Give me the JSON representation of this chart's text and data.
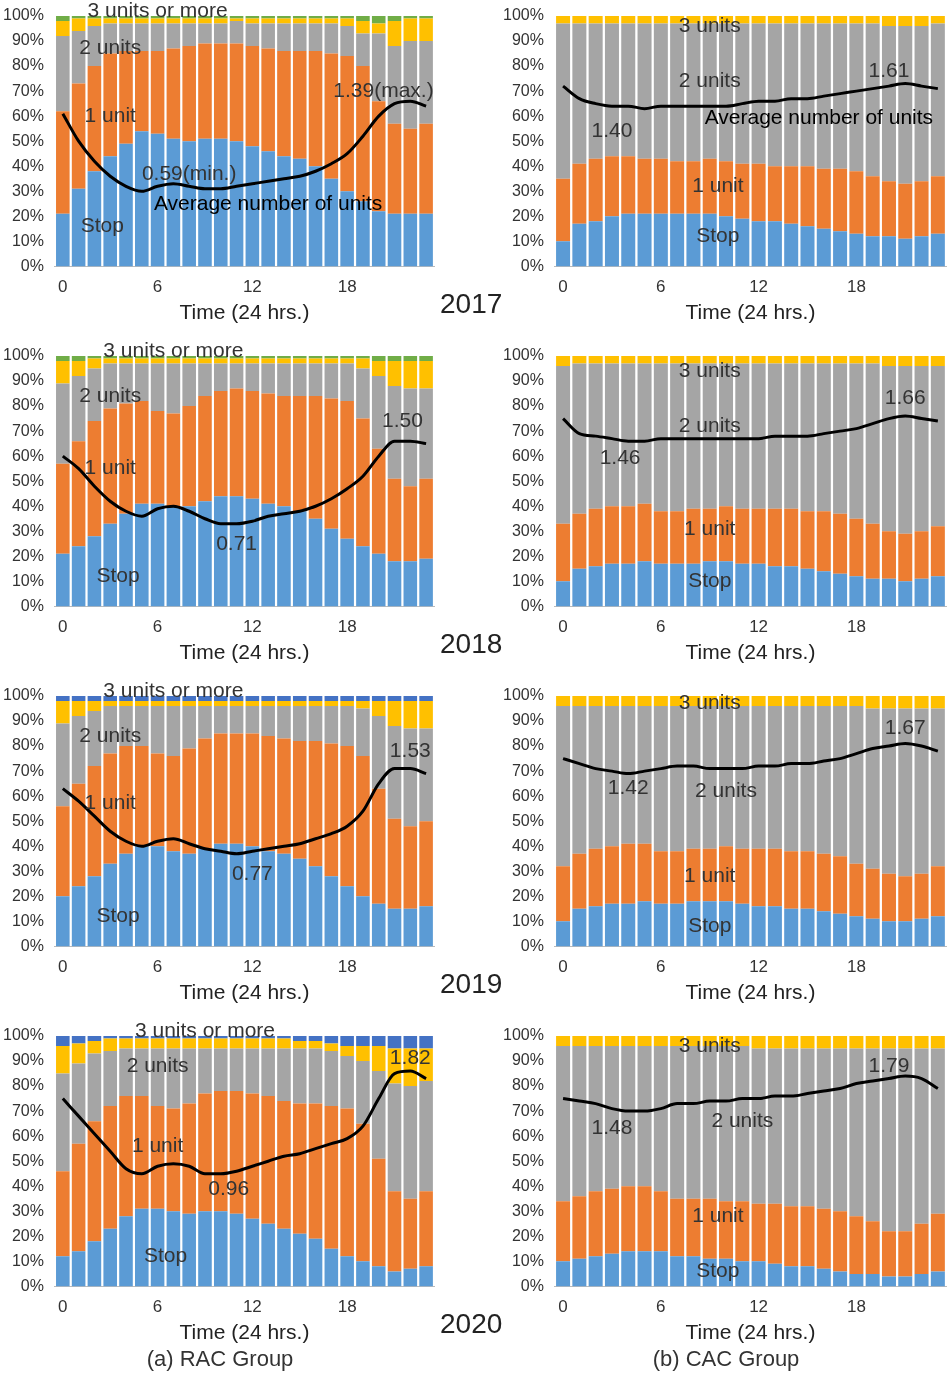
{
  "chart_data": [
    {
      "type": "bar",
      "stacked": true,
      "title": "2017",
      "xlabel": "Time (24 hrs.)",
      "grid": false,
      "legend": false,
      "marker": "none",
      "x": [
        0,
        1,
        2,
        3,
        4,
        5,
        6,
        7,
        8,
        9,
        10,
        11,
        12,
        13,
        14,
        15,
        16,
        17,
        18,
        19,
        20,
        21,
        22,
        23
      ],
      "xlim": [
        -0.5,
        23.5
      ],
      "xticks": [
        0,
        6,
        12,
        18
      ],
      "ylim": [
        0,
        100
      ],
      "yticks": [
        {
          "value": 0,
          "label": "0%"
        },
        {
          "value": 10,
          "label": "10%"
        },
        {
          "value": 20,
          "label": "20%"
        },
        {
          "value": 30,
          "label": "30%"
        },
        {
          "value": 40,
          "label": "40%"
        },
        {
          "value": 50,
          "label": "50%"
        },
        {
          "value": 60,
          "label": "60%"
        },
        {
          "value": 70,
          "label": "70%"
        },
        {
          "value": 80,
          "label": "80%"
        },
        {
          "value": 90,
          "label": "90%"
        },
        {
          "value": 100,
          "label": "100%"
        }
      ],
      "series": [
        {
          "name": "Stop",
          "color": "#5b9bd5",
          "values": [
            21,
            31,
            38,
            44,
            49,
            54,
            53,
            51,
            50,
            51,
            51,
            50,
            48,
            46,
            44,
            43,
            40,
            35,
            30,
            26,
            22,
            21,
            21,
            21
          ]
        },
        {
          "name": "1 unit",
          "color": "#ed7d31",
          "values": [
            41,
            42,
            42,
            41,
            37,
            32,
            33,
            36,
            38,
            38,
            38,
            39,
            40,
            41,
            42,
            43,
            46,
            50,
            54,
            54,
            44,
            36,
            34,
            36
          ]
        },
        {
          "name": "2 units",
          "color": "#a5a5a5",
          "values": [
            30,
            21,
            16,
            12,
            11,
            11,
            11,
            10,
            9,
            8,
            8,
            9,
            9,
            10,
            11,
            11,
            11,
            12,
            12,
            13,
            27,
            31,
            35,
            33
          ]
        },
        {
          "name": "3 units or more",
          "color": "#ffc000",
          "values": [
            6,
            5,
            3,
            2,
            2,
            2,
            2,
            2,
            2,
            2,
            2,
            1,
            2,
            2,
            2,
            2,
            2,
            2,
            3,
            5,
            4,
            10,
            9,
            9
          ]
        },
        {
          "color": "#70ad47",
          "values": [
            2,
            1,
            1,
            1,
            1,
            1,
            1,
            1,
            1,
            1,
            1,
            1,
            1,
            1,
            1,
            1,
            1,
            1,
            1,
            2,
            3,
            2,
            1,
            1
          ]
        },
        {
          "name": "Average number of units",
          "type": "line",
          "color": "#000000",
          "values": [
            61,
            50,
            42,
            36,
            32,
            30,
            32,
            33,
            32,
            31,
            31,
            32,
            33,
            34,
            35,
            36,
            38,
            41,
            45,
            52,
            60,
            65,
            66,
            64
          ]
        }
      ],
      "annotations": [
        "1.39(max.)",
        "0.59(min.)"
      ]
    },
    {
      "type": "bar",
      "stacked": true,
      "xlabel": "Time (24 hrs.)",
      "grid": false,
      "legend": false,
      "marker": "none",
      "x": [
        0,
        1,
        2,
        3,
        4,
        5,
        6,
        7,
        8,
        9,
        10,
        11,
        12,
        13,
        14,
        15,
        16,
        17,
        18,
        19,
        20,
        21,
        22,
        23
      ],
      "xlim": [
        -0.5,
        23.5
      ],
      "xticks": [
        0,
        6,
        12,
        18
      ],
      "ylim": [
        0,
        100
      ],
      "yticks": [
        {
          "value": 0,
          "label": "0%"
        },
        {
          "value": 10,
          "label": "10%"
        },
        {
          "value": 20,
          "label": "20%"
        },
        {
          "value": 30,
          "label": "30%"
        },
        {
          "value": 40,
          "label": "40%"
        },
        {
          "value": 50,
          "label": "50%"
        },
        {
          "value": 60,
          "label": "60%"
        },
        {
          "value": 70,
          "label": "70%"
        },
        {
          "value": 80,
          "label": "80%"
        },
        {
          "value": 90,
          "label": "90%"
        },
        {
          "value": 100,
          "label": "100%"
        }
      ],
      "series": [
        {
          "name": "Stop",
          "color": "#5b9bd5",
          "values": [
            10,
            17,
            18,
            20,
            21,
            21,
            21,
            21,
            21,
            21,
            20,
            19,
            18,
            18,
            17,
            16,
            15,
            14,
            13,
            12,
            12,
            11,
            12,
            13
          ]
        },
        {
          "name": "1 unit",
          "color": "#ed7d31",
          "values": [
            25,
            24,
            25,
            24,
            23,
            22,
            22,
            21,
            21,
            22,
            22,
            22,
            23,
            22,
            23,
            24,
            24,
            25,
            25,
            24,
            22,
            22,
            22,
            23
          ]
        },
        {
          "name": "2 units",
          "color": "#a5a5a5",
          "values": [
            62,
            56,
            54,
            53,
            53,
            54,
            54,
            55,
            55,
            54,
            55,
            56,
            56,
            57,
            57,
            57,
            58,
            58,
            59,
            61,
            62,
            63,
            62,
            61
          ]
        },
        {
          "name": "3 units",
          "color": "#ffc000",
          "values": [
            3,
            3,
            3,
            3,
            3,
            3,
            3,
            3,
            3,
            3,
            3,
            3,
            3,
            3,
            3,
            3,
            3,
            3,
            3,
            3,
            4,
            4,
            4,
            3
          ]
        },
        {
          "name": "Average number of units",
          "type": "line",
          "color": "#000000",
          "values": [
            72,
            67,
            65,
            64,
            64,
            63,
            64,
            64,
            64,
            64,
            64,
            65,
            66,
            66,
            67,
            67,
            68,
            69,
            70,
            71,
            72,
            73,
            72,
            71
          ]
        }
      ],
      "annotations": [
        "1.61",
        "1.40"
      ]
    },
    {
      "type": "bar",
      "stacked": true,
      "title": "2018",
      "xlabel": "Time (24 hrs.)",
      "grid": false,
      "legend": false,
      "marker": "none",
      "x": [
        0,
        1,
        2,
        3,
        4,
        5,
        6,
        7,
        8,
        9,
        10,
        11,
        12,
        13,
        14,
        15,
        16,
        17,
        18,
        19,
        20,
        21,
        22,
        23
      ],
      "xlim": [
        -0.5,
        23.5
      ],
      "xticks": [
        0,
        6,
        12,
        18
      ],
      "ylim": [
        0,
        100
      ],
      "yticks": [
        {
          "value": 0,
          "label": "0%"
        },
        {
          "value": 10,
          "label": "10%"
        },
        {
          "value": 20,
          "label": "20%"
        },
        {
          "value": 30,
          "label": "30%"
        },
        {
          "value": 40,
          "label": "40%"
        },
        {
          "value": 50,
          "label": "50%"
        },
        {
          "value": 60,
          "label": "60%"
        },
        {
          "value": 70,
          "label": "70%"
        },
        {
          "value": 80,
          "label": "80%"
        },
        {
          "value": 90,
          "label": "90%"
        },
        {
          "value": 100,
          "label": "100%"
        }
      ],
      "series": [
        {
          "name": "Stop",
          "color": "#5b9bd5",
          "values": [
            21,
            24,
            28,
            33,
            37,
            41,
            41,
            40,
            40,
            42,
            44,
            44,
            43,
            41,
            40,
            38,
            35,
            31,
            27,
            24,
            21,
            18,
            18,
            19
          ]
        },
        {
          "name": "1 unit",
          "color": "#ed7d31",
          "values": [
            36,
            42,
            46,
            46,
            44,
            41,
            37,
            37,
            40,
            42,
            42,
            43,
            43,
            44,
            44,
            46,
            49,
            52,
            55,
            51,
            42,
            33,
            30,
            32
          ]
        },
        {
          "name": "2 units",
          "color": "#a5a5a5",
          "values": [
            32,
            26,
            21,
            18,
            16,
            15,
            19,
            20,
            17,
            13,
            11,
            10,
            11,
            12,
            13,
            13,
            13,
            14,
            15,
            20,
            29,
            37,
            39,
            36
          ]
        },
        {
          "name": "3 units or more",
          "color": "#ffc000",
          "values": [
            9,
            6,
            4,
            2,
            2,
            2,
            2,
            2,
            2,
            2,
            2,
            2,
            2,
            2,
            2,
            2,
            2,
            2,
            2,
            4,
            6,
            10,
            11,
            11
          ]
        },
        {
          "color": "#70ad47",
          "values": [
            2,
            2,
            1,
            1,
            1,
            1,
            1,
            1,
            1,
            1,
            1,
            1,
            1,
            1,
            1,
            1,
            1,
            1,
            1,
            1,
            2,
            2,
            2,
            2
          ]
        },
        {
          "type": "line",
          "color": "#000000",
          "values": [
            60,
            55,
            48,
            42,
            38,
            36,
            39,
            40,
            38,
            35,
            33,
            33,
            34,
            36,
            37,
            38,
            40,
            43,
            47,
            52,
            60,
            66,
            66,
            65
          ]
        }
      ],
      "annotations": [
        "1.50",
        "0.71"
      ]
    },
    {
      "type": "bar",
      "stacked": true,
      "xlabel": "Time (24 hrs.)",
      "grid": false,
      "legend": false,
      "marker": "none",
      "x": [
        0,
        1,
        2,
        3,
        4,
        5,
        6,
        7,
        8,
        9,
        10,
        11,
        12,
        13,
        14,
        15,
        16,
        17,
        18,
        19,
        20,
        21,
        22,
        23
      ],
      "xlim": [
        -0.5,
        23.5
      ],
      "xticks": [
        0,
        6,
        12,
        18
      ],
      "ylim": [
        0,
        100
      ],
      "yticks": [
        {
          "value": 0,
          "label": "0%"
        },
        {
          "value": 10,
          "label": "10%"
        },
        {
          "value": 20,
          "label": "20%"
        },
        {
          "value": 30,
          "label": "30%"
        },
        {
          "value": 40,
          "label": "40%"
        },
        {
          "value": 50,
          "label": "50%"
        },
        {
          "value": 60,
          "label": "60%"
        },
        {
          "value": 70,
          "label": "70%"
        },
        {
          "value": 80,
          "label": "80%"
        },
        {
          "value": 90,
          "label": "90%"
        },
        {
          "value": 100,
          "label": "100%"
        }
      ],
      "series": [
        {
          "name": "Stop",
          "color": "#5b9bd5",
          "values": [
            10,
            15,
            16,
            17,
            17,
            18,
            17,
            17,
            17,
            18,
            18,
            17,
            17,
            16,
            16,
            15,
            14,
            13,
            12,
            11,
            11,
            10,
            11,
            12
          ]
        },
        {
          "name": "1 unit",
          "color": "#ed7d31",
          "values": [
            23,
            22,
            23,
            23,
            23,
            23,
            21,
            21,
            22,
            21,
            22,
            22,
            22,
            23,
            23,
            23,
            24,
            24,
            23,
            22,
            19,
            19,
            19,
            20
          ]
        },
        {
          "name": "2 units",
          "color": "#a5a5a5",
          "values": [
            63,
            60,
            58,
            57,
            57,
            56,
            59,
            59,
            58,
            58,
            57,
            58,
            58,
            58,
            58,
            59,
            59,
            60,
            62,
            64,
            66,
            67,
            66,
            64
          ]
        },
        {
          "name": "3 units",
          "color": "#ffc000",
          "values": [
            4,
            3,
            3,
            3,
            3,
            3,
            3,
            3,
            3,
            3,
            3,
            3,
            3,
            3,
            3,
            3,
            3,
            3,
            3,
            3,
            4,
            4,
            4,
            4
          ]
        },
        {
          "type": "line",
          "color": "#000000",
          "values": [
            75,
            69,
            68,
            67,
            66,
            66,
            67,
            67,
            67,
            67,
            67,
            67,
            67,
            68,
            68,
            68,
            69,
            70,
            71,
            73,
            75,
            76,
            75,
            74
          ]
        }
      ],
      "annotations": [
        "1.66",
        "1.46"
      ]
    },
    {
      "type": "bar",
      "stacked": true,
      "title": "2019",
      "xlabel": "Time (24 hrs.)",
      "grid": false,
      "legend": false,
      "marker": "none",
      "x": [
        0,
        1,
        2,
        3,
        4,
        5,
        6,
        7,
        8,
        9,
        10,
        11,
        12,
        13,
        14,
        15,
        16,
        17,
        18,
        19,
        20,
        21,
        22,
        23
      ],
      "xlim": [
        -0.5,
        23.5
      ],
      "xticks": [
        0,
        6,
        12,
        18
      ],
      "ylim": [
        0,
        100
      ],
      "yticks": [
        {
          "value": 0,
          "label": "0%"
        },
        {
          "value": 10,
          "label": "10%"
        },
        {
          "value": 20,
          "label": "20%"
        },
        {
          "value": 30,
          "label": "30%"
        },
        {
          "value": 40,
          "label": "40%"
        },
        {
          "value": 50,
          "label": "50%"
        },
        {
          "value": 60,
          "label": "60%"
        },
        {
          "value": 70,
          "label": "70%"
        },
        {
          "value": 80,
          "label": "80%"
        },
        {
          "value": 90,
          "label": "90%"
        },
        {
          "value": 100,
          "label": "100%"
        }
      ],
      "series": [
        {
          "name": "Stop",
          "color": "#5b9bd5",
          "values": [
            20,
            24,
            28,
            33,
            37,
            40,
            40,
            38,
            37,
            39,
            41,
            41,
            40,
            38,
            37,
            35,
            32,
            28,
            24,
            20,
            17,
            15,
            15,
            16
          ]
        },
        {
          "name": "1 unit",
          "color": "#ed7d31",
          "values": [
            36,
            41,
            44,
            44,
            43,
            40,
            37,
            38,
            42,
            44,
            44,
            44,
            45,
            46,
            46,
            47,
            50,
            53,
            56,
            56,
            46,
            36,
            33,
            34
          ]
        },
        {
          "name": "2 units",
          "color": "#a5a5a5",
          "values": [
            33,
            27,
            22,
            19,
            16,
            16,
            19,
            20,
            17,
            13,
            11,
            11,
            11,
            12,
            13,
            14,
            14,
            15,
            16,
            19,
            29,
            37,
            39,
            37
          ]
        },
        {
          "name": "3 units or more",
          "color": "#ffc000",
          "values": [
            9,
            6,
            4,
            2,
            2,
            2,
            2,
            2,
            2,
            2,
            2,
            2,
            2,
            2,
            2,
            2,
            2,
            2,
            2,
            3,
            6,
            10,
            11,
            11
          ]
        },
        {
          "color": "#4472c4",
          "values": [
            2,
            2,
            2,
            2,
            2,
            2,
            2,
            2,
            2,
            2,
            2,
            2,
            2,
            2,
            2,
            2,
            2,
            2,
            2,
            2,
            2,
            2,
            2,
            2
          ]
        },
        {
          "type": "line",
          "color": "#000000",
          "values": [
            63,
            58,
            52,
            46,
            42,
            40,
            42,
            43,
            41,
            39,
            38,
            37,
            38,
            39,
            40,
            41,
            43,
            45,
            48,
            54,
            65,
            71,
            71,
            69
          ]
        }
      ],
      "annotations": [
        "1.53",
        "0.77"
      ]
    },
    {
      "type": "bar",
      "stacked": true,
      "xlabel": "Time (24 hrs.)",
      "grid": false,
      "legend": false,
      "marker": "none",
      "x": [
        0,
        1,
        2,
        3,
        4,
        5,
        6,
        7,
        8,
        9,
        10,
        11,
        12,
        13,
        14,
        15,
        16,
        17,
        18,
        19,
        20,
        21,
        22,
        23
      ],
      "xlim": [
        -0.5,
        23.5
      ],
      "xticks": [
        0,
        6,
        12,
        18
      ],
      "ylim": [
        0,
        100
      ],
      "yticks": [
        {
          "value": 0,
          "label": "0%"
        },
        {
          "value": 10,
          "label": "10%"
        },
        {
          "value": 20,
          "label": "20%"
        },
        {
          "value": 30,
          "label": "30%"
        },
        {
          "value": 40,
          "label": "40%"
        },
        {
          "value": 50,
          "label": "50%"
        },
        {
          "value": 60,
          "label": "60%"
        },
        {
          "value": 70,
          "label": "70%"
        },
        {
          "value": 80,
          "label": "80%"
        },
        {
          "value": 90,
          "label": "90%"
        },
        {
          "value": 100,
          "label": "100%"
        }
      ],
      "series": [
        {
          "name": "Stop",
          "color": "#5b9bd5",
          "values": [
            10,
            15,
            16,
            17,
            17,
            18,
            17,
            17,
            18,
            18,
            18,
            17,
            16,
            16,
            15,
            15,
            14,
            13,
            12,
            11,
            10,
            10,
            11,
            12
          ]
        },
        {
          "name": "1 unit",
          "color": "#ed7d31",
          "values": [
            22,
            22,
            23,
            23,
            24,
            23,
            21,
            21,
            21,
            21,
            22,
            22,
            23,
            23,
            23,
            23,
            23,
            23,
            21,
            20,
            19,
            18,
            18,
            20
          ]
        },
        {
          "name": "2 units",
          "color": "#a5a5a5",
          "values": [
            64,
            59,
            57,
            56,
            55,
            55,
            58,
            58,
            57,
            57,
            56,
            57,
            57,
            57,
            58,
            58,
            59,
            60,
            63,
            64,
            66,
            67,
            66,
            63
          ]
        },
        {
          "name": "3 units",
          "color": "#ffc000",
          "values": [
            4,
            4,
            4,
            4,
            4,
            4,
            4,
            4,
            4,
            4,
            4,
            4,
            4,
            4,
            4,
            4,
            4,
            4,
            4,
            5,
            5,
            5,
            5,
            5
          ]
        },
        {
          "type": "line",
          "color": "#000000",
          "values": [
            75,
            73,
            71,
            70,
            69,
            70,
            71,
            72,
            72,
            71,
            71,
            71,
            72,
            72,
            73,
            73,
            74,
            75,
            77,
            79,
            80,
            81,
            80,
            78
          ]
        }
      ],
      "annotations": [
        "1.67",
        "1.42"
      ]
    },
    {
      "type": "bar",
      "stacked": true,
      "title": "2020",
      "xlabel": "Time (24 hrs.)",
      "grid": false,
      "legend": false,
      "marker": "none",
      "x": [
        0,
        1,
        2,
        3,
        4,
        5,
        6,
        7,
        8,
        9,
        10,
        11,
        12,
        13,
        14,
        15,
        16,
        17,
        18,
        19,
        20,
        21,
        22,
        23
      ],
      "xlim": [
        -0.5,
        23.5
      ],
      "xticks": [
        0,
        6,
        12,
        18
      ],
      "ylim": [
        0,
        100
      ],
      "yticks": [
        {
          "value": 0,
          "label": "0%"
        },
        {
          "value": 10,
          "label": "10%"
        },
        {
          "value": 20,
          "label": "20%"
        },
        {
          "value": 30,
          "label": "30%"
        },
        {
          "value": 40,
          "label": "40%"
        },
        {
          "value": 50,
          "label": "50%"
        },
        {
          "value": 60,
          "label": "60%"
        },
        {
          "value": 70,
          "label": "70%"
        },
        {
          "value": 80,
          "label": "80%"
        },
        {
          "value": 90,
          "label": "90%"
        },
        {
          "value": 100,
          "label": "100%"
        }
      ],
      "series": [
        {
          "name": "Stop",
          "color": "#5b9bd5",
          "values": [
            12,
            14,
            18,
            23,
            28,
            31,
            31,
            30,
            29,
            30,
            30,
            29,
            27,
            25,
            23,
            21,
            19,
            15,
            12,
            10,
            8,
            6,
            7,
            8
          ]
        },
        {
          "name": "1 unit",
          "color": "#ed7d31",
          "values": [
            34,
            43,
            48,
            49,
            48,
            45,
            41,
            41,
            44,
            47,
            48,
            49,
            50,
            51,
            51,
            52,
            54,
            57,
            59,
            55,
            43,
            32,
            28,
            30
          ]
        },
        {
          "name": "2 units",
          "color": "#a5a5a5",
          "values": [
            39,
            32,
            27,
            22,
            19,
            19,
            23,
            24,
            22,
            18,
            17,
            17,
            18,
            19,
            21,
            22,
            22,
            22,
            21,
            25,
            35,
            43,
            45,
            44
          ]
        },
        {
          "name": "3 units or more",
          "color": "#ffc000",
          "values": [
            11,
            8,
            5,
            5,
            4,
            4,
            4,
            4,
            4,
            4,
            4,
            4,
            4,
            4,
            4,
            3,
            3,
            3,
            4,
            6,
            10,
            14,
            15,
            13
          ]
        },
        {
          "color": "#4472c4",
          "values": [
            4,
            3,
            2,
            1,
            1,
            1,
            1,
            1,
            1,
            1,
            1,
            1,
            1,
            1,
            1,
            2,
            2,
            3,
            4,
            4,
            4,
            5,
            5,
            5
          ]
        },
        {
          "type": "line",
          "color": "#000000",
          "values": [
            75,
            68,
            61,
            54,
            47,
            45,
            48,
            49,
            48,
            45,
            45,
            46,
            48,
            50,
            52,
            53,
            55,
            57,
            59,
            64,
            75,
            85,
            86,
            83
          ]
        }
      ],
      "annotations": [
        "1.82",
        "0.96",
        "(a) RAC Group"
      ]
    },
    {
      "type": "bar",
      "stacked": true,
      "xlabel": "Time (24 hrs.)",
      "grid": false,
      "legend": false,
      "marker": "none",
      "x": [
        0,
        1,
        2,
        3,
        4,
        5,
        6,
        7,
        8,
        9,
        10,
        11,
        12,
        13,
        14,
        15,
        16,
        17,
        18,
        19,
        20,
        21,
        22,
        23
      ],
      "xlim": [
        -0.5,
        23.5
      ],
      "xticks": [
        0,
        6,
        12,
        18
      ],
      "ylim": [
        0,
        100
      ],
      "yticks": [
        {
          "value": 0,
          "label": "0%"
        },
        {
          "value": 10,
          "label": "10%"
        },
        {
          "value": 20,
          "label": "20%"
        },
        {
          "value": 30,
          "label": "30%"
        },
        {
          "value": 40,
          "label": "40%"
        },
        {
          "value": 50,
          "label": "50%"
        },
        {
          "value": 60,
          "label": "60%"
        },
        {
          "value": 70,
          "label": "70%"
        },
        {
          "value": 80,
          "label": "80%"
        },
        {
          "value": 90,
          "label": "90%"
        },
        {
          "value": 100,
          "label": "100%"
        }
      ],
      "series": [
        {
          "name": "Stop",
          "color": "#5b9bd5",
          "values": [
            10,
            11,
            12,
            13,
            14,
            14,
            14,
            12,
            12,
            11,
            11,
            10,
            10,
            9,
            8,
            8,
            7,
            6,
            5,
            5,
            4,
            4,
            5,
            6
          ]
        },
        {
          "name": "1 unit",
          "color": "#ed7d31",
          "values": [
            24,
            25,
            26,
            26,
            26,
            26,
            24,
            23,
            23,
            24,
            23,
            24,
            23,
            24,
            24,
            24,
            24,
            24,
            23,
            21,
            18,
            18,
            20,
            23
          ]
        },
        {
          "name": "2 units",
          "color": "#a5a5a5",
          "values": [
            62,
            60,
            58,
            57,
            56,
            56,
            58,
            61,
            61,
            61,
            62,
            62,
            62,
            62,
            63,
            63,
            64,
            65,
            67,
            69,
            73,
            73,
            70,
            66
          ]
        },
        {
          "name": "3 units",
          "color": "#ffc000",
          "values": [
            4,
            4,
            4,
            4,
            4,
            4,
            4,
            4,
            4,
            4,
            4,
            4,
            5,
            5,
            5,
            5,
            5,
            5,
            5,
            5,
            5,
            5,
            5,
            5
          ]
        },
        {
          "type": "line",
          "color": "#000000",
          "values": [
            75,
            74,
            73,
            71,
            70,
            70,
            71,
            73,
            73,
            74,
            74,
            75,
            75,
            76,
            76,
            77,
            78,
            79,
            81,
            82,
            83,
            84,
            83,
            79
          ]
        }
      ],
      "annotations": [
        "1.79",
        "1.48",
        "(b) CAC Group"
      ]
    }
  ]
}
